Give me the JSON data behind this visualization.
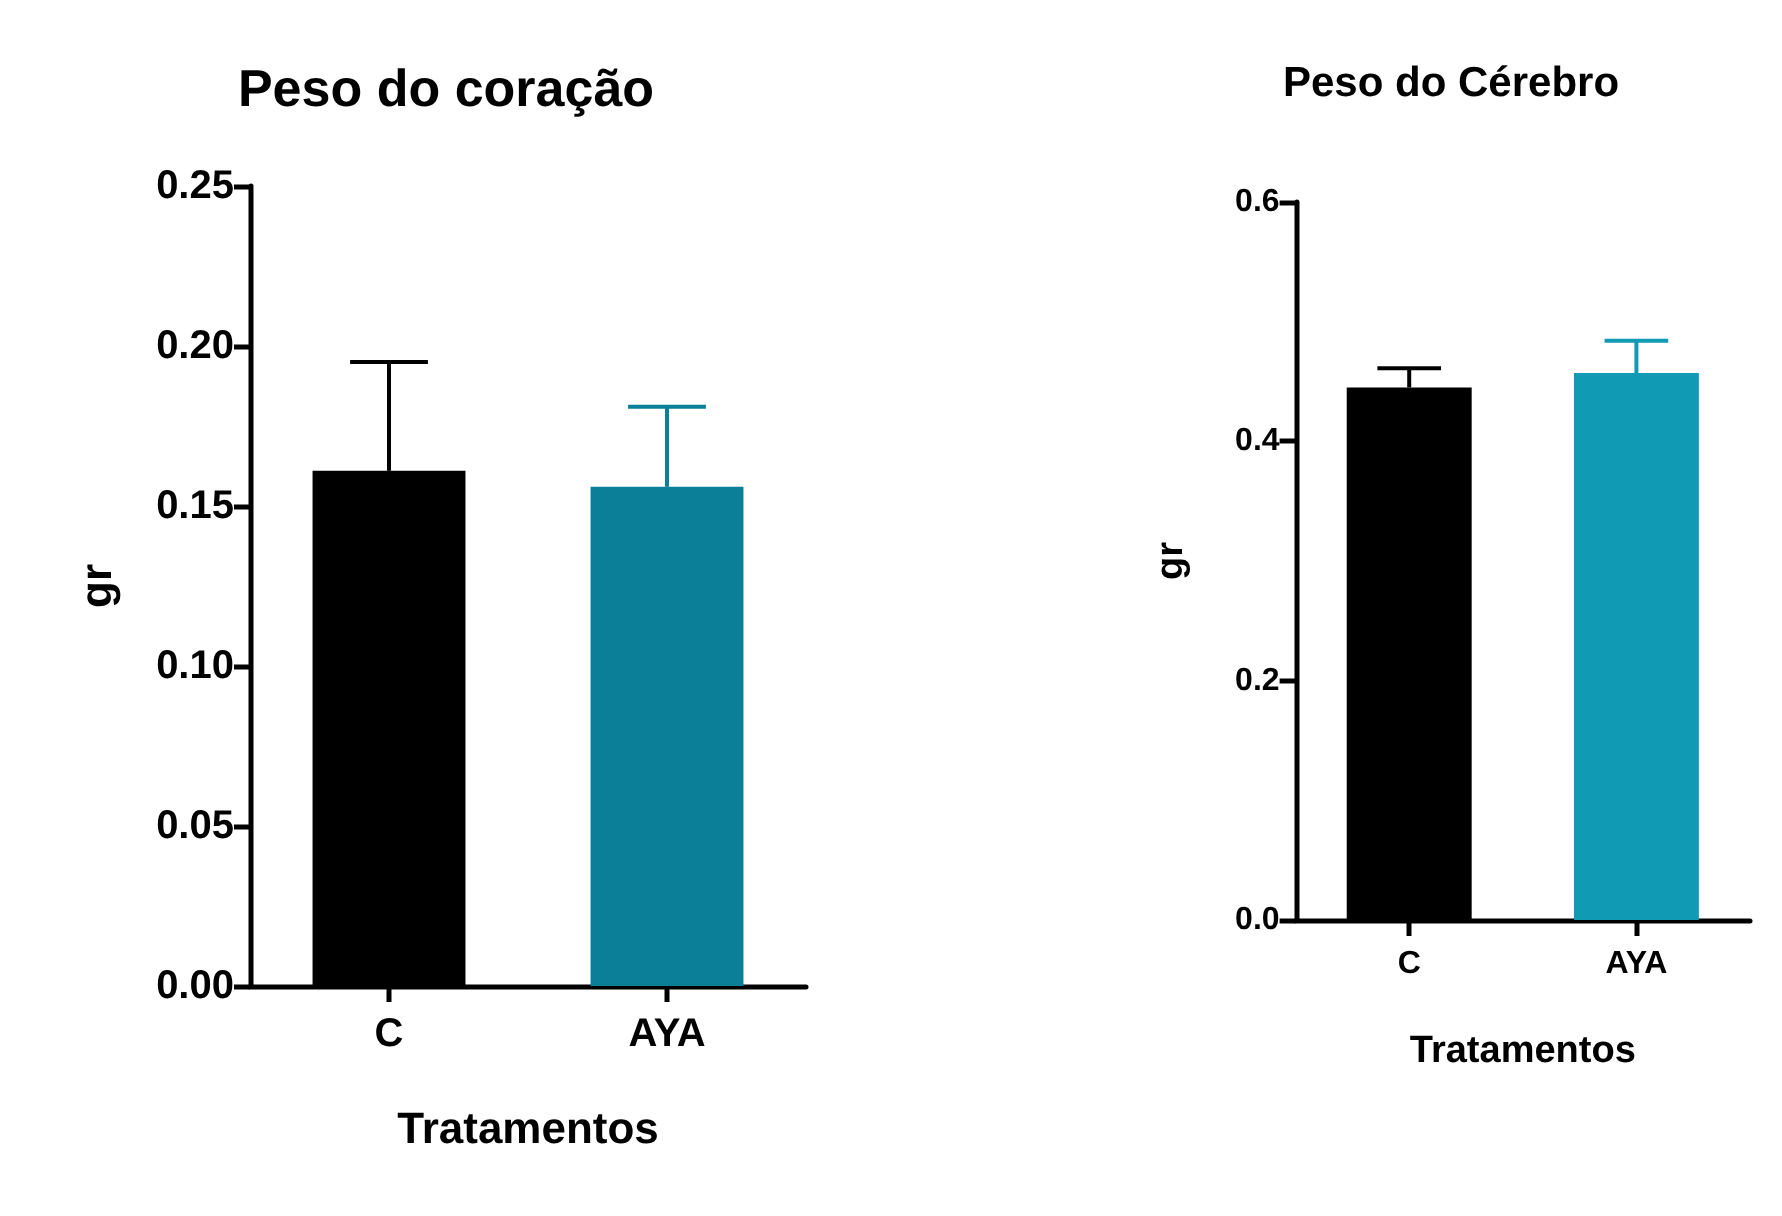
{
  "chart_data": [
    {
      "type": "bar",
      "title": "Peso do coração",
      "xlabel": "Tratamentos",
      "ylabel": "gr",
      "categories": [
        "C",
        "AYA"
      ],
      "values": [
        0.161,
        0.156
      ],
      "colors": [
        "#000000",
        "#0a7f97"
      ],
      "errors": [
        [
          0.161,
          0.195
        ],
        [
          0.156,
          0.181
        ]
      ],
      "ylim": [
        0,
        0.25
      ],
      "yticks": [
        {
          "value": 0,
          "label": "0.00"
        },
        {
          "value": 0.05,
          "label": "0.05"
        },
        {
          "value": 0.1,
          "label": "0.10"
        },
        {
          "value": 0.15,
          "label": "0.15"
        },
        {
          "value": 0.2,
          "label": "0.20"
        },
        {
          "value": 0.25,
          "label": "0.25"
        }
      ]
    },
    {
      "type": "bar",
      "title": "Peso do Cérebro",
      "xlabel": "Tratamentos",
      "ylabel": "gr",
      "categories": [
        "C",
        "AYA"
      ],
      "values": [
        0.445,
        0.457
      ],
      "colors": [
        "#000000",
        "#119ab4"
      ],
      "errors": [
        [
          0.445,
          0.461
        ],
        [
          0.457,
          0.484
        ]
      ],
      "ylim": [
        0,
        0.6
      ],
      "yticks": [
        {
          "value": 0,
          "label": "0.0"
        },
        {
          "value": 0.2,
          "label": "0.2"
        },
        {
          "value": 0.4,
          "label": "0.4"
        },
        {
          "value": 0.6,
          "label": "0.6"
        }
      ]
    }
  ]
}
